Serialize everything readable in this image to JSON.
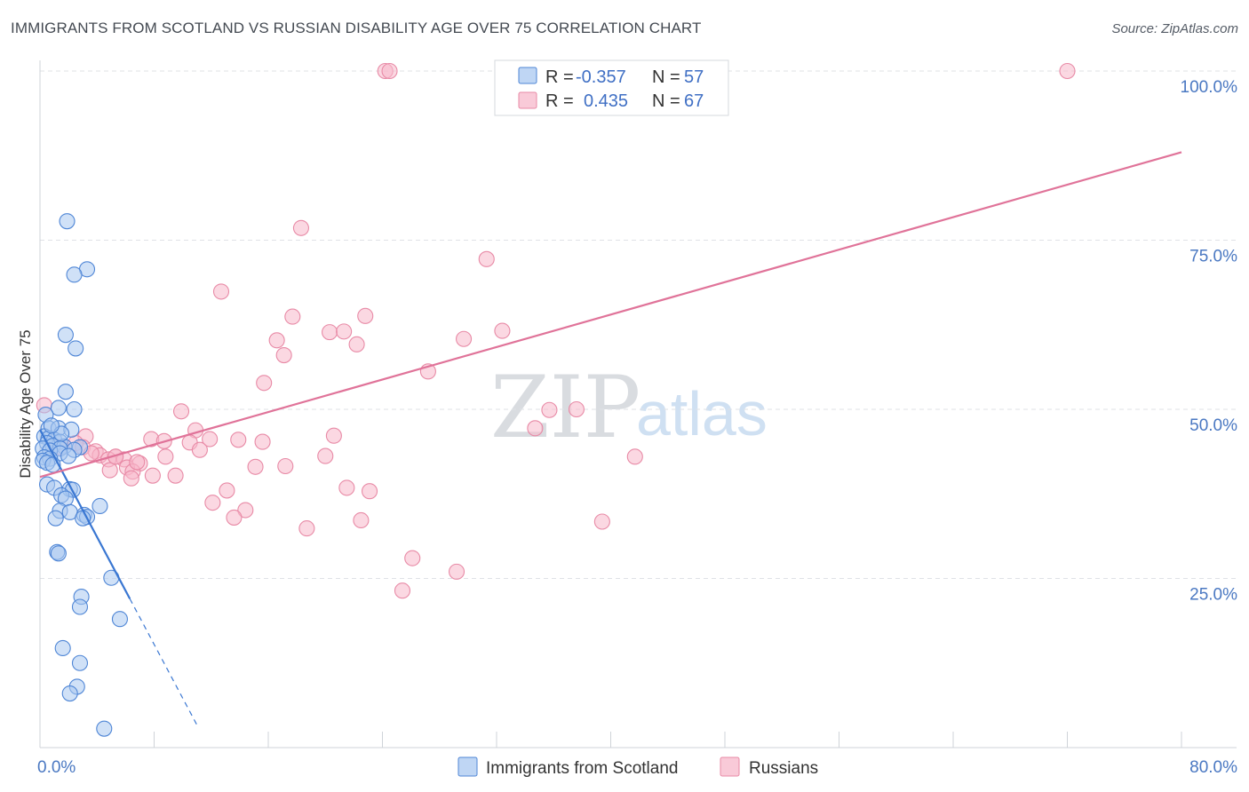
{
  "title": "IMMIGRANTS FROM SCOTLAND VS RUSSIAN DISABILITY AGE OVER 75 CORRELATION CHART",
  "source": "Source: ZipAtlas.com",
  "watermark": {
    "zip": "ZIP",
    "atlas": "atlas"
  },
  "legend": {
    "rows": [
      {
        "r_label": "R =",
        "r_value": "-0.357",
        "n_label": "N =",
        "n_value": "57"
      },
      {
        "r_label": "R =",
        "r_value": "0.435",
        "n_label": "N =",
        "n_value": "67"
      }
    ]
  },
  "chart_data": {
    "type": "scatter",
    "title": "IMMIGRANTS FROM SCOTLAND VS RUSSIAN DISABILITY AGE OVER 75 CORRELATION CHART",
    "xlabel": "",
    "ylabel": "Disability Age Over 75",
    "xlim": [
      0,
      80
    ],
    "ylim": [
      0,
      100
    ],
    "x_tick_labels": [
      "0.0%",
      "80.0%"
    ],
    "y_ticks": [
      25,
      50,
      75,
      100
    ],
    "y_tick_labels": [
      "25.0%",
      "50.0%",
      "75.0%",
      "100.0%"
    ],
    "grid": "horizontal dashed",
    "legend_position": "top-center",
    "colors": {
      "scotland_fill": "#a9c8f0",
      "scotland_stroke": "#4f86d6",
      "scotland_line": "#3a77d2",
      "russians_fill": "#f7b8cb",
      "russians_stroke": "#e88aa6",
      "russians_line": "#e07399"
    },
    "series": [
      {
        "name": "Immigrants from Scotland",
        "r": -0.357,
        "n": 57,
        "trend": {
          "x0": 0.0,
          "y0": 47.0,
          "x1": 6.3,
          "y1": 22.0,
          "dash_to_x": 11.1
        },
        "points": [
          [
            1.9,
            77.8
          ],
          [
            3.3,
            70.7
          ],
          [
            2.4,
            69.9
          ],
          [
            1.8,
            61.0
          ],
          [
            2.5,
            59.0
          ],
          [
            1.8,
            52.6
          ],
          [
            1.3,
            50.2
          ],
          [
            2.4,
            50.0
          ],
          [
            0.4,
            49.2
          ],
          [
            0.6,
            47.2
          ],
          [
            1.3,
            47.2
          ],
          [
            2.2,
            47.0
          ],
          [
            0.3,
            46.0
          ],
          [
            0.6,
            45.7
          ],
          [
            1.0,
            45.5
          ],
          [
            1.4,
            45.2
          ],
          [
            0.5,
            45.0
          ],
          [
            0.9,
            44.6
          ],
          [
            1.7,
            44.5
          ],
          [
            2.8,
            44.4
          ],
          [
            0.2,
            44.2
          ],
          [
            1.4,
            44.2
          ],
          [
            2.4,
            44.0
          ],
          [
            0.7,
            43.9
          ],
          [
            1.4,
            43.5
          ],
          [
            2.0,
            43.1
          ],
          [
            0.3,
            42.9
          ],
          [
            0.7,
            42.7
          ],
          [
            0.2,
            42.4
          ],
          [
            0.5,
            42.1
          ],
          [
            0.9,
            41.8
          ],
          [
            0.5,
            38.9
          ],
          [
            1.0,
            38.4
          ],
          [
            2.1,
            38.2
          ],
          [
            2.3,
            38.1
          ],
          [
            1.5,
            37.3
          ],
          [
            1.8,
            36.8
          ],
          [
            4.2,
            35.7
          ],
          [
            1.4,
            35.0
          ],
          [
            2.1,
            34.8
          ],
          [
            3.1,
            34.4
          ],
          [
            3.3,
            34.1
          ],
          [
            1.1,
            33.9
          ],
          [
            3.0,
            33.9
          ],
          [
            1.2,
            28.9
          ],
          [
            1.3,
            28.7
          ],
          [
            5.0,
            25.1
          ],
          [
            2.9,
            22.3
          ],
          [
            2.8,
            20.8
          ],
          [
            5.6,
            19.0
          ],
          [
            1.6,
            14.7
          ],
          [
            2.8,
            12.5
          ],
          [
            2.6,
            9.0
          ],
          [
            2.1,
            8.0
          ],
          [
            4.5,
            2.8
          ],
          [
            1.5,
            46.4
          ],
          [
            0.8,
            47.6
          ]
        ]
      },
      {
        "name": "Russians",
        "r": 0.435,
        "n": 67,
        "trend": {
          "x0": 0.0,
          "y0": 40.0,
          "x1": 80.0,
          "y1": 88.0
        },
        "points": [
          [
            24.2,
            100.0
          ],
          [
            24.5,
            100.0
          ],
          [
            72.0,
            100.0
          ],
          [
            18.3,
            76.8
          ],
          [
            31.3,
            72.2
          ],
          [
            12.7,
            67.4
          ],
          [
            17.7,
            63.7
          ],
          [
            22.8,
            63.8
          ],
          [
            20.3,
            61.4
          ],
          [
            21.3,
            61.5
          ],
          [
            32.4,
            61.6
          ],
          [
            16.6,
            60.2
          ],
          [
            29.7,
            60.4
          ],
          [
            22.2,
            59.6
          ],
          [
            17.1,
            58.0
          ],
          [
            27.2,
            55.6
          ],
          [
            15.7,
            53.9
          ],
          [
            9.9,
            49.7
          ],
          [
            35.7,
            49.9
          ],
          [
            37.6,
            50.0
          ],
          [
            0.3,
            50.6
          ],
          [
            34.7,
            47.2
          ],
          [
            10.9,
            46.9
          ],
          [
            20.6,
            46.1
          ],
          [
            3.2,
            46.0
          ],
          [
            7.8,
            45.6
          ],
          [
            8.7,
            45.3
          ],
          [
            11.9,
            45.6
          ],
          [
            13.9,
            45.5
          ],
          [
            15.6,
            45.2
          ],
          [
            2.5,
            45.0
          ],
          [
            10.5,
            45.1
          ],
          [
            3.0,
            44.4
          ],
          [
            11.2,
            44.0
          ],
          [
            3.9,
            43.8
          ],
          [
            20.0,
            43.1
          ],
          [
            41.7,
            43.0
          ],
          [
            4.2,
            43.2
          ],
          [
            5.3,
            43.0
          ],
          [
            8.8,
            43.0
          ],
          [
            4.8,
            42.6
          ],
          [
            5.9,
            42.6
          ],
          [
            7.0,
            42.0
          ],
          [
            6.1,
            41.4
          ],
          [
            15.1,
            41.5
          ],
          [
            17.2,
            41.6
          ],
          [
            4.9,
            41.0
          ],
          [
            6.5,
            40.8
          ],
          [
            7.9,
            40.2
          ],
          [
            9.5,
            40.2
          ],
          [
            6.4,
            39.8
          ],
          [
            21.5,
            38.4
          ],
          [
            13.1,
            38.0
          ],
          [
            23.1,
            37.9
          ],
          [
            12.1,
            36.2
          ],
          [
            14.4,
            35.1
          ],
          [
            13.6,
            34.0
          ],
          [
            22.5,
            33.6
          ],
          [
            39.4,
            33.4
          ],
          [
            18.7,
            32.4
          ],
          [
            26.1,
            28.0
          ],
          [
            29.2,
            26.0
          ],
          [
            25.4,
            23.2
          ],
          [
            6.8,
            42.2
          ],
          [
            3.6,
            43.5
          ],
          [
            1.4,
            44.4
          ],
          [
            5.3,
            43.0
          ]
        ]
      }
    ]
  },
  "bottom_legend": [
    "Immigrants from Scotland",
    "Russians"
  ]
}
